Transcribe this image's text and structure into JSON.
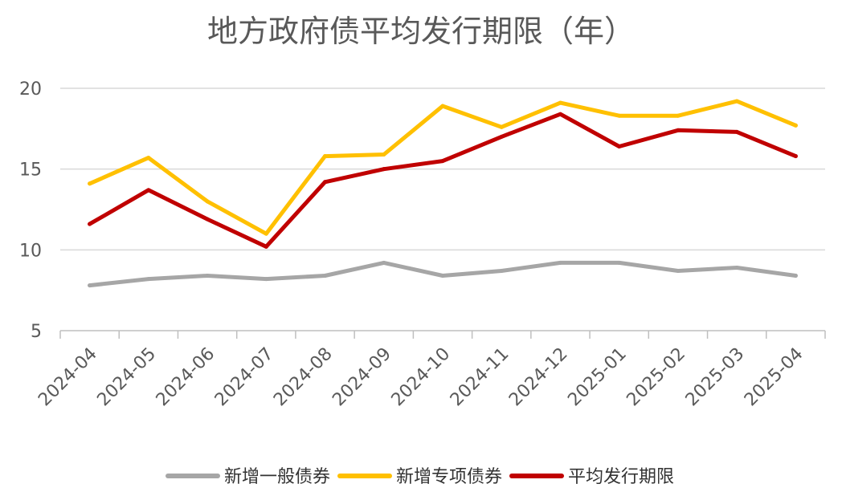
{
  "chart_data": {
    "type": "line",
    "title": "地方政府债平均发行期限（年）",
    "xlabel": "",
    "ylabel": "",
    "ylim": [
      5,
      20
    ],
    "yticks": [
      5,
      10,
      15,
      20
    ],
    "grid": true,
    "legend_position": "bottom",
    "categories": [
      "2024-04",
      "2024-05",
      "2024-06",
      "2024-07",
      "2024-08",
      "2024-09",
      "2024-10",
      "2024-11",
      "2024-12",
      "2025-01",
      "2025-02",
      "2025-03",
      "2025-04"
    ],
    "series": [
      {
        "name": "新增一般债券",
        "color": "#a6a6a6",
        "values": [
          7.8,
          8.2,
          8.4,
          8.2,
          8.4,
          9.2,
          8.4,
          8.7,
          9.2,
          9.2,
          8.7,
          8.9,
          8.4
        ]
      },
      {
        "name": "新增专项债券",
        "color": "#ffc000",
        "values": [
          14.1,
          15.7,
          13.0,
          11.0,
          15.8,
          15.9,
          18.9,
          17.6,
          19.1,
          18.3,
          18.3,
          19.2,
          17.7
        ]
      },
      {
        "name": "平均发行期限",
        "color": "#c00000",
        "values": [
          11.6,
          13.7,
          11.9,
          10.2,
          14.2,
          15.0,
          15.5,
          17.0,
          18.4,
          16.4,
          17.4,
          17.3,
          15.8
        ]
      }
    ]
  }
}
